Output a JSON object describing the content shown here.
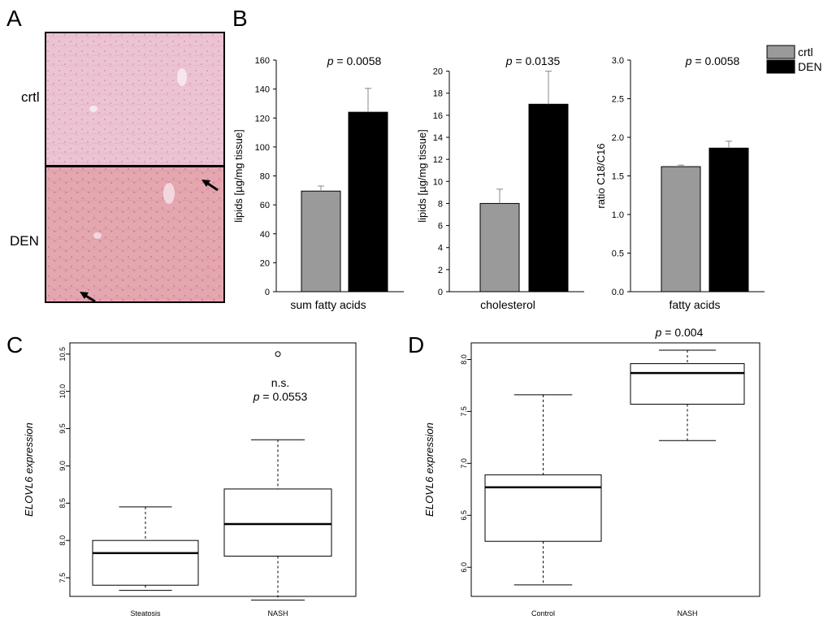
{
  "panel_a": {
    "letter": "A",
    "label_top": "crtl",
    "label_bottom": "DEN"
  },
  "panel_b_letter": "B",
  "panel_c_letter": "C",
  "panel_d_letter": "D",
  "colors": {
    "crtl": "#9a9a9a",
    "den": "#000000",
    "tissue_top": "#ecc3d3",
    "tissue_bottom": "#e4a7b0"
  },
  "legend": {
    "entries": [
      {
        "name": "crtl",
        "color": "#9a9a9a"
      },
      {
        "name": "DEN",
        "color": "#000000"
      }
    ]
  },
  "chart_data": [
    {
      "id": "b1",
      "type": "bar",
      "categories": [
        "crtl",
        "DEN"
      ],
      "values": [
        69.5,
        124
      ],
      "errors": [
        3.5,
        16.5
      ],
      "xlabel": "sum fatty acids",
      "ylabel": "lipids [µg/mg tissue]",
      "ylim": [
        0,
        160
      ],
      "ticks": [
        "0",
        "20",
        "40",
        "60",
        "80",
        "100",
        "120",
        "140",
        "160"
      ],
      "p_prefix": "p",
      "p_value": " = 0.0058"
    },
    {
      "id": "b2",
      "type": "bar",
      "categories": [
        "crtl",
        "DEN"
      ],
      "values": [
        8.0,
        17.0
      ],
      "errors": [
        1.3,
        3.0
      ],
      "xlabel": "cholesterol",
      "ylabel": "lipids [µg/mg tissue]",
      "ylim": [
        0,
        21
      ],
      "ticks": [
        "0",
        "2",
        "4",
        "6",
        "8",
        "10",
        "12",
        "14",
        "16",
        "18",
        "20"
      ],
      "p_prefix": "p",
      "p_value": " = 0.0135"
    },
    {
      "id": "b3",
      "type": "bar",
      "categories": [
        "crtl",
        "DEN"
      ],
      "values": [
        1.62,
        1.86
      ],
      "errors": [
        0.02,
        0.09
      ],
      "xlabel": "fatty acids",
      "ylabel": "ratio C18/C16",
      "ylim": [
        0,
        3.0
      ],
      "ticks": [
        "0.0",
        "0.5",
        "1.0",
        "1.5",
        "2.0",
        "2.5",
        "3.0"
      ],
      "p_prefix": "p",
      "p_value": " = 0.0058"
    },
    {
      "id": "c",
      "type": "box",
      "ylabel": "ELOVL6 expression",
      "ylim": [
        7.25,
        10.65
      ],
      "ticks": [
        "7.5",
        "8.0",
        "8.5",
        "9.0",
        "9.5",
        "10.0",
        "10.5"
      ],
      "groups": [
        {
          "name": "Steatosis",
          "whisker_low": 7.33,
          "q1": 7.4,
          "median": 7.83,
          "q3": 8.0,
          "whisker_high": 8.45,
          "outliers": []
        },
        {
          "name": "NASH",
          "whisker_low": 7.2,
          "q1": 7.79,
          "median": 8.22,
          "q3": 8.69,
          "whisker_high": 9.35,
          "outliers": [
            10.5
          ]
        }
      ],
      "annotation_ns": "n.s.",
      "p_prefix": "p",
      "p_value": " = 0.0553"
    },
    {
      "id": "d",
      "type": "box",
      "ylabel": "ELOVL6 expression",
      "ylim": [
        5.72,
        8.16
      ],
      "ticks": [
        "6.0",
        "6.5",
        "7.0",
        "7.5",
        "8.0"
      ],
      "groups": [
        {
          "name": "Control",
          "whisker_low": 5.83,
          "q1": 6.25,
          "median": 6.77,
          "q3": 6.89,
          "whisker_high": 7.66,
          "outliers": []
        },
        {
          "name": "NASH",
          "whisker_low": 7.22,
          "q1": 7.57,
          "median": 7.87,
          "q3": 7.96,
          "whisker_high": 8.09,
          "outliers": []
        }
      ],
      "p_prefix": "p",
      "p_value": " = 0.004"
    }
  ]
}
